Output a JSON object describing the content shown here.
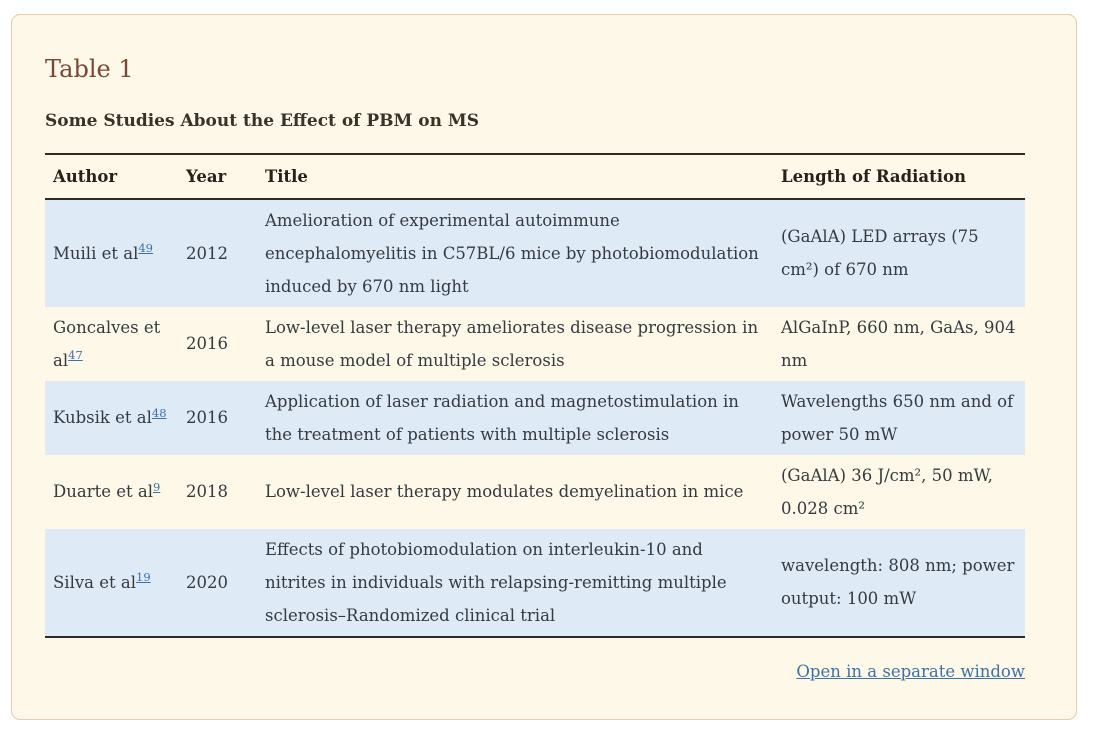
{
  "panel": {
    "table_label": "Table 1",
    "caption": "Some Studies About the Effect of PBM on MS",
    "open_link_label": "Open in a separate window"
  },
  "table": {
    "headers": [
      "Author",
      "Year",
      "Title",
      "Length of Radiation"
    ],
    "rows": [
      {
        "author": "Muili et al",
        "ref": "49",
        "year": "2012",
        "title": "Amelioration of experimental autoimmune encephalomyelitis in C57BL/6 mice by photobiomodulation induced by 670 nm light",
        "radiation": "(GaAlA) LED arrays (75 cm²) of 670 nm"
      },
      {
        "author": "Goncalves et al",
        "ref": "47",
        "year": "2016",
        "title": "Low-level laser therapy ameliorates disease progression in a mouse model of multiple sclerosis",
        "radiation": "AlGaInP, 660 nm, GaAs, 904 nm"
      },
      {
        "author": "Kubsik et al",
        "ref": "48",
        "year": "2016",
        "title": "Application of laser radiation and magnetostimulation in the treatment of patients with multiple sclerosis",
        "radiation": "Wavelengths 650 nm and of power 50 mW"
      },
      {
        "author": "Duarte et al",
        "ref": "9",
        "year": "2018",
        "title": "Low-level laser therapy modulates demyelination in mice",
        "radiation": "(GaAlA) 36 J/cm², 50 mW, 0.028 cm²"
      },
      {
        "author": "Silva et al",
        "ref": "19",
        "year": "2020",
        "title": "Effects of photobiomodulation on interleukin-10 and nitrites in individuals with relapsing-remitting multiple sclerosis–Randomized clinical trial",
        "radiation": "wavelength: 808 nm; power output: 100 mW"
      }
    ]
  },
  "colors": {
    "panel_background": "#fdf8e8",
    "panel_border": "#e9cda4",
    "heading_brown": "#7b4633",
    "row_stripe_blue": "#dfeaf7",
    "link_blue": "#3a72ad",
    "rule_dark": "#2e2a24",
    "body_text": "#343a40"
  }
}
